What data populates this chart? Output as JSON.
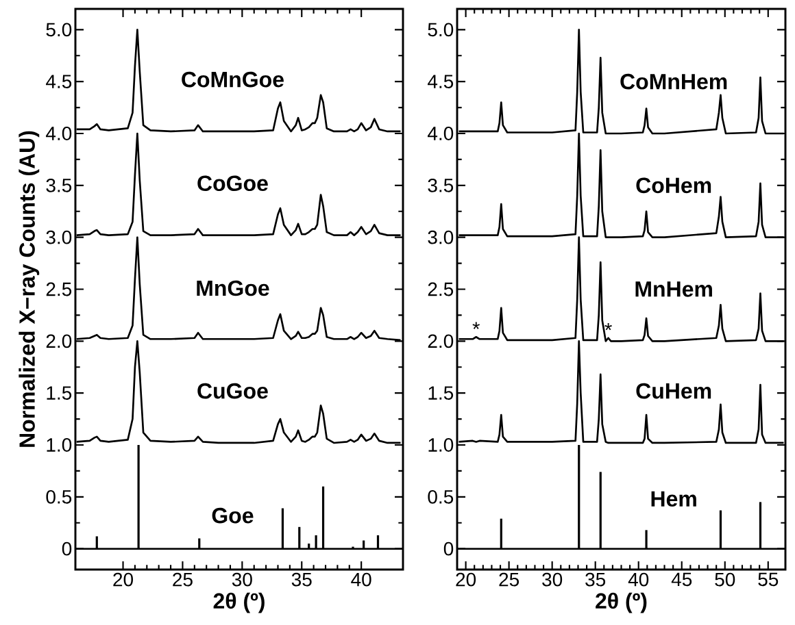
{
  "chart_data": [
    {
      "type": "line",
      "xlabel": "2θ (º)",
      "ylabel": "Normalized X−ray Counts (AU)",
      "xlim": [
        16,
        43.5
      ],
      "ylim": [
        -0.2,
        5.2
      ],
      "xticks": [
        20,
        25,
        30,
        35,
        40
      ],
      "yticks": [
        0,
        0.5,
        {
          "value": 1,
          "label": "1.0"
        },
        1.5,
        {
          "value": 2,
          "label": "2.0"
        },
        2.5,
        {
          "value": 3,
          "label": "3.0"
        },
        3.5,
        {
          "value": 4,
          "label": "4.0"
        },
        4.5,
        {
          "value": 5,
          "label": "5.0"
        }
      ],
      "marker": "none",
      "x": [
        16.1,
        17.2,
        17.6,
        17.8,
        18.1,
        18.8,
        20.4,
        20.8,
        21.0,
        21.2,
        21.4,
        21.7,
        22.3,
        24.0,
        26.0,
        26.3,
        26.7,
        28.0,
        31.0,
        32.6,
        33.0,
        33.2,
        33.5,
        34.1,
        34.5,
        34.7,
        35.0,
        35.3,
        35.6,
        35.9,
        36.1,
        36.3,
        36.6,
        36.8,
        37.1,
        37.7,
        38.8,
        39.1,
        39.4,
        39.7,
        40.0,
        40.4,
        40.8,
        41.1,
        41.5,
        42.2,
        43.3
      ],
      "series": [
        {
          "type": "line",
          "color": "#000000",
          "x": [
            16,
            43.5
          ],
          "values": [
            0,
            0
          ]
        },
        {
          "name": "Goe",
          "type": "bar",
          "color": "#000000",
          "x": [
            17.8,
            21.3,
            26.4,
            33.4,
            34.8,
            35.6,
            36.2,
            36.8,
            39.3,
            40.2,
            41.4
          ],
          "values": [
            0.12,
            1.0,
            0.1,
            0.39,
            0.21,
            0.05,
            0.13,
            0.6,
            0.02,
            0.08,
            0.13
          ]
        },
        {
          "name": "CuGoe",
          "color": "#000000",
          "values": [
            1.03,
            1.04,
            1.07,
            1.08,
            1.04,
            1.03,
            1.05,
            1.25,
            1.75,
            2.0,
            1.7,
            1.12,
            1.04,
            1.03,
            1.04,
            1.08,
            1.03,
            1.02,
            1.02,
            1.04,
            1.2,
            1.25,
            1.12,
            1.03,
            1.08,
            1.14,
            1.04,
            1.03,
            1.05,
            1.08,
            1.08,
            1.12,
            1.38,
            1.3,
            1.06,
            1.02,
            1.03,
            1.05,
            1.03,
            1.05,
            1.1,
            1.04,
            1.06,
            1.11,
            1.04,
            1.02,
            1.02
          ]
        },
        {
          "name": "MnGoe",
          "color": "#000000",
          "values": [
            2.02,
            2.03,
            2.05,
            2.06,
            2.03,
            2.02,
            2.03,
            2.15,
            2.6,
            3.0,
            2.55,
            2.06,
            2.02,
            2.02,
            2.03,
            2.08,
            2.02,
            2.02,
            2.02,
            2.03,
            2.2,
            2.26,
            2.1,
            2.02,
            2.05,
            2.09,
            2.03,
            2.03,
            2.04,
            2.07,
            2.07,
            2.1,
            2.32,
            2.25,
            2.04,
            2.02,
            2.02,
            2.04,
            2.02,
            2.04,
            2.08,
            2.03,
            2.05,
            2.1,
            2.03,
            2.02,
            2.01
          ]
        },
        {
          "name": "CoGoe",
          "color": "#000000",
          "values": [
            3.02,
            3.03,
            3.06,
            3.07,
            3.03,
            3.02,
            3.03,
            3.15,
            3.6,
            4.0,
            3.55,
            3.06,
            3.02,
            3.02,
            3.03,
            3.08,
            3.02,
            3.02,
            3.02,
            3.03,
            3.22,
            3.28,
            3.12,
            3.02,
            3.07,
            3.13,
            3.03,
            3.03,
            3.05,
            3.08,
            3.08,
            3.12,
            3.41,
            3.3,
            3.05,
            3.02,
            3.02,
            3.05,
            3.02,
            3.05,
            3.1,
            3.03,
            3.06,
            3.12,
            3.04,
            3.02,
            3.02
          ]
        },
        {
          "name": "CoMnGoe",
          "color": "#000000",
          "values": [
            4.04,
            4.04,
            4.07,
            4.09,
            4.04,
            4.03,
            4.05,
            4.2,
            4.65,
            5.0,
            4.6,
            4.08,
            4.03,
            4.02,
            4.03,
            4.08,
            4.02,
            4.02,
            4.02,
            4.03,
            4.24,
            4.3,
            4.12,
            4.02,
            4.08,
            4.15,
            4.03,
            4.04,
            4.06,
            4.1,
            4.1,
            4.15,
            4.37,
            4.3,
            4.05,
            4.02,
            4.02,
            4.04,
            4.02,
            4.04,
            4.1,
            4.03,
            4.06,
            4.14,
            4.04,
            4.02,
            4.02
          ]
        }
      ]
    },
    {
      "type": "line",
      "xlabel": "2θ (º)",
      "xlim": [
        19,
        57
      ],
      "ylim": [
        -0.2,
        5.2
      ],
      "xticks": [
        20,
        25,
        30,
        35,
        40,
        45,
        50,
        55
      ],
      "yticks": [
        0,
        0.5,
        {
          "value": 1,
          "label": "1.0"
        },
        1.5,
        {
          "value": 2,
          "label": "2.0"
        },
        2.5,
        {
          "value": 3,
          "label": "3.0"
        },
        3.5,
        {
          "value": 4,
          "label": "4.0"
        },
        4.5,
        {
          "value": 5,
          "label": "5.0"
        }
      ],
      "marker": "none",
      "annotations": [
        {
          "text": "*",
          "x": 21.2,
          "y": 2.04
        },
        {
          "text": "*",
          "x": 36.5,
          "y": 2.03
        }
      ],
      "x": [
        19.2,
        20.8,
        21.2,
        21.6,
        23.7,
        23.9,
        24.1,
        24.3,
        24.8,
        30.0,
        32.7,
        32.9,
        33.1,
        33.3,
        33.6,
        35.2,
        35.4,
        35.6,
        35.8,
        36.2,
        36.5,
        36.8,
        38.0,
        40.5,
        40.7,
        40.9,
        41.1,
        41.6,
        43.0,
        49.0,
        49.3,
        49.5,
        49.7,
        50.1,
        53.6,
        53.9,
        54.1,
        54.3,
        54.7,
        56.8
      ],
      "series": [
        {
          "type": "line",
          "color": "#000000",
          "x": [
            19,
            57
          ],
          "values": [
            0,
            0
          ]
        },
        {
          "name": "Hem",
          "type": "bar",
          "color": "#000000",
          "x": [
            24.1,
            33.1,
            35.6,
            39.3,
            40.9,
            43.5,
            49.5,
            54.1
          ],
          "values": [
            0.29,
            1.0,
            0.74,
            null,
            0.18,
            null,
            0.37,
            0.45
          ]
        },
        {
          "name": "CuHem",
          "color": "#000000",
          "values": [
            1.03,
            1.04,
            1.03,
            1.04,
            1.03,
            1.1,
            1.29,
            1.08,
            1.03,
            1.03,
            1.04,
            1.4,
            2.0,
            1.5,
            1.03,
            1.03,
            1.25,
            1.68,
            1.2,
            1.03,
            1.02,
            1.02,
            1.02,
            1.02,
            1.06,
            1.29,
            1.06,
            1.02,
            1.02,
            1.03,
            1.15,
            1.39,
            1.12,
            1.02,
            1.02,
            1.15,
            1.58,
            1.1,
            1.02,
            1.02
          ]
        },
        {
          "name": "MnHem",
          "color": "#000000",
          "values": [
            2.02,
            2.02,
            2.04,
            2.02,
            2.02,
            2.1,
            2.32,
            2.08,
            2.01,
            2.01,
            2.03,
            2.4,
            3.0,
            2.4,
            2.01,
            2.01,
            2.25,
            2.76,
            2.2,
            2.0,
            2.03,
            2.0,
            2.0,
            2.01,
            2.06,
            2.22,
            2.05,
            2.0,
            2.0,
            2.03,
            2.15,
            2.35,
            2.12,
            2.0,
            2.01,
            2.12,
            2.46,
            2.1,
            2.0,
            2.0
          ]
        },
        {
          "name": "CoHem",
          "color": "#000000",
          "values": [
            3.02,
            3.02,
            3.02,
            3.02,
            3.02,
            3.1,
            3.32,
            3.08,
            3.01,
            3.01,
            3.03,
            3.4,
            4.0,
            3.4,
            3.01,
            3.01,
            3.3,
            3.84,
            3.25,
            3.0,
            3.0,
            3.0,
            3.0,
            3.01,
            3.07,
            3.25,
            3.05,
            3.0,
            3.0,
            3.04,
            3.2,
            3.39,
            3.15,
            3.0,
            3.01,
            3.15,
            3.52,
            3.12,
            3.0,
            3.0
          ]
        },
        {
          "name": "CoMnHem",
          "color": "#000000",
          "values": [
            4.02,
            4.02,
            4.02,
            4.02,
            4.02,
            4.1,
            4.3,
            4.08,
            4.01,
            4.01,
            4.03,
            4.4,
            5.0,
            4.4,
            4.01,
            4.01,
            4.25,
            4.73,
            4.2,
            4.0,
            4.0,
            4.0,
            4.0,
            4.01,
            4.08,
            4.24,
            4.06,
            4.0,
            4.0,
            4.04,
            4.2,
            4.37,
            4.15,
            4.0,
            4.01,
            4.15,
            4.54,
            4.12,
            4.0,
            4.0
          ]
        }
      ]
    }
  ]
}
